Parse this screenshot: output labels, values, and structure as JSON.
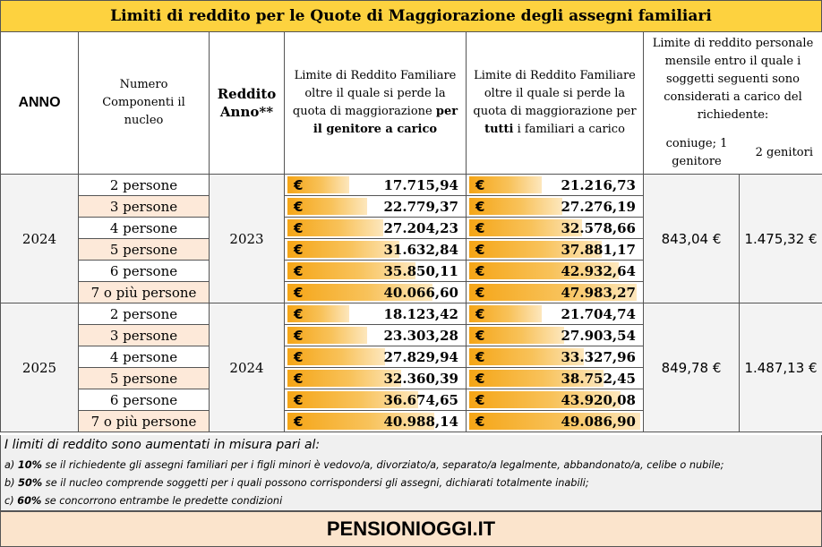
{
  "title": "Limiti di reddito per le Quote di Maggiorazione degli assegni familiari",
  "header": {
    "anno": "ANNO",
    "componenti": "Numero Componenti il nucleo",
    "reddito_anno": "Reddito Anno**",
    "col_genitore": {
      "pre": "Limite di Reddito Familiare oltre il quale si perde la quota di maggiorazione ",
      "bold": "per il genitore a carico"
    },
    "col_tutti": {
      "pre": "Limite di Reddito Familiare oltre il quale si perde la quota di maggiorazione per ",
      "bold": "tutti",
      "post": " i familiari a carico"
    },
    "col_personale": "Limite di reddito personale mensile entro il quale i soggetti seguenti sono considerati a carico del richiedente:",
    "sub_coniuge": "coniuge; 1 genitore",
    "sub_genitori": "2 genitori"
  },
  "currency_symbol": "€",
  "groups": [
    {
      "anno": "2024",
      "reddito_anno": "2023",
      "limite_coniuge": "843,04 €",
      "limite_genitori": "1.475,32 €",
      "rows": [
        {
          "componenti": "2 persone",
          "genitore": "17.715,94",
          "genitore_fill": 0.37,
          "tutti": "21.216,73",
          "tutti_fill": 0.44
        },
        {
          "componenti": "3 persone",
          "genitore": "22.779,37",
          "genitore_fill": 0.47,
          "tutti": "27.276,19",
          "tutti_fill": 0.56
        },
        {
          "componenti": "4 persone",
          "genitore": "27.204,23",
          "genitore_fill": 0.56,
          "tutti": "32.578,66",
          "tutti_fill": 0.67
        },
        {
          "componenti": "5 persone",
          "genitore": "31.632,84",
          "genitore_fill": 0.65,
          "tutti": "37.881,17",
          "tutti_fill": 0.78
        },
        {
          "componenti": "6 persone",
          "genitore": "35.850,11",
          "genitore_fill": 0.74,
          "tutti": "42.932,64",
          "tutti_fill": 0.88
        },
        {
          "componenti": "7 o più persone",
          "genitore": "40.066,60",
          "genitore_fill": 0.83,
          "tutti": "47.983,27",
          "tutti_fill": 0.98
        }
      ]
    },
    {
      "anno": "2025",
      "reddito_anno": "2024",
      "limite_coniuge": "849,78 €",
      "limite_genitori": "1.487,13 €",
      "rows": [
        {
          "componenti": "2 persone",
          "genitore": "18.123,42",
          "genitore_fill": 0.37,
          "tutti": "21.704,74",
          "tutti_fill": 0.44
        },
        {
          "componenti": "3 persone",
          "genitore": "23.303,28",
          "genitore_fill": 0.47,
          "tutti": "27.903,54",
          "tutti_fill": 0.57
        },
        {
          "componenti": "4 persone",
          "genitore": "27.829,94",
          "genitore_fill": 0.57,
          "tutti": "33.327,96",
          "tutti_fill": 0.68
        },
        {
          "componenti": "5 persone",
          "genitore": "32.360,39",
          "genitore_fill": 0.66,
          "tutti": "38.752,45",
          "tutti_fill": 0.79
        },
        {
          "componenti": "6 persone",
          "genitore": "36.674,65",
          "genitore_fill": 0.75,
          "tutti": "43.920,08",
          "tutti_fill": 0.89
        },
        {
          "componenti": "7 o più persone",
          "genitore": "40.988,14",
          "genitore_fill": 0.84,
          "tutti": "49.086,90",
          "tutti_fill": 1.0
        }
      ]
    }
  ],
  "notes": {
    "intro": "I limiti di reddito sono aumentati in misura pari al:",
    "items": [
      {
        "prefix": "a) ",
        "pct": "10%",
        "text": " se il richiedente gli assegni familiari per i figli minori è vedovo/a, divorziato/a, separato/a legalmente, abbandonato/a, celibe o nubile;"
      },
      {
        "prefix": "b) ",
        "pct": "50%",
        "text": " se il nucleo comprende soggetti per i quali possono corrispondersi gli assegni, dichiarati totalmente inabili;"
      },
      {
        "prefix": "c) ",
        "pct": "60%",
        "text": " se concorrono entrambe le predette condizioni"
      }
    ]
  },
  "footer": "PENSIONIOGGI.IT",
  "colors": {
    "title_bg": "#fdd23f",
    "bar": "#f5a516",
    "footer_bg": "#fbe4cc"
  }
}
